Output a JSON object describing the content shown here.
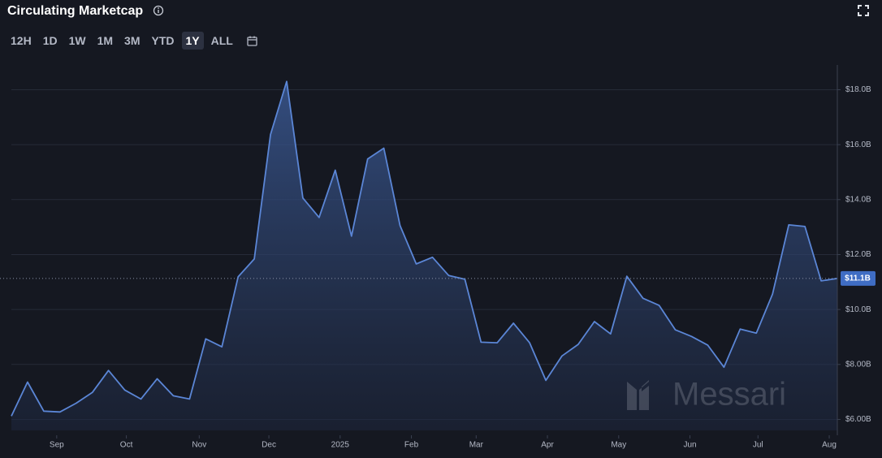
{
  "header": {
    "title": "Circulating Marketcap"
  },
  "controls": {
    "ranges": [
      "12H",
      "1D",
      "1W",
      "1M",
      "3M",
      "YTD",
      "1Y",
      "ALL"
    ],
    "selected": "1Y"
  },
  "watermark": "Messari",
  "chart_data": {
    "type": "area",
    "color": "#5b86d6",
    "values": [
      6.12,
      7.36,
      6.3,
      6.27,
      6.59,
      6.98,
      7.78,
      7.07,
      6.74,
      7.48,
      6.86,
      6.74,
      8.93,
      8.64,
      11.19,
      11.84,
      16.37,
      18.3,
      14.06,
      13.35,
      15.07,
      12.67,
      15.48,
      15.87,
      13.05,
      11.66,
      11.9,
      11.24,
      11.1,
      8.81,
      8.79,
      9.5,
      8.79,
      7.42,
      8.31,
      8.73,
      9.56,
      9.11,
      11.21,
      10.41,
      10.15,
      9.26,
      9.02,
      8.7,
      7.9,
      9.29,
      9.14,
      10.56,
      13.08,
      13.02,
      11.04,
      11.13
    ],
    "xlim": [
      0,
      51
    ],
    "xticks": [
      {
        "value": 2.8,
        "label": "Sep"
      },
      {
        "value": 7.1,
        "label": "Oct"
      },
      {
        "value": 11.6,
        "label": "Nov"
      },
      {
        "value": 15.9,
        "label": "Dec"
      },
      {
        "value": 20.3,
        "label": "2025"
      },
      {
        "value": 24.7,
        "label": "Feb"
      },
      {
        "value": 28.7,
        "label": "Mar"
      },
      {
        "value": 33.1,
        "label": "Apr"
      },
      {
        "value": 37.5,
        "label": "May"
      },
      {
        "value": 41.9,
        "label": "Jun"
      },
      {
        "value": 46.1,
        "label": "Jul"
      },
      {
        "value": 50.5,
        "label": "Aug"
      }
    ],
    "ylim": [
      5.6,
      18.9
    ],
    "yticks": [
      {
        "value": 6,
        "label": "$6.00B"
      },
      {
        "value": 8,
        "label": "$8.00B"
      },
      {
        "value": 10,
        "label": "$10.0B"
      },
      {
        "value": 12,
        "label": "$12.0B"
      },
      {
        "value": 14,
        "label": "$14.0B"
      },
      {
        "value": 16,
        "label": "$16.0B"
      },
      {
        "value": 18,
        "label": "$18.0B"
      }
    ],
    "grid": true,
    "current": {
      "value": 11.13,
      "label": "$11.1B"
    }
  }
}
